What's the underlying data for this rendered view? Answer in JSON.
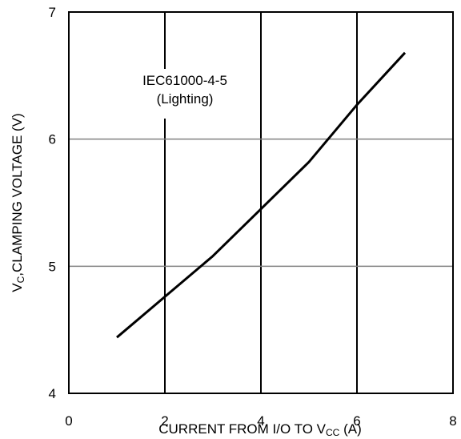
{
  "chart_data": {
    "type": "line",
    "title": "",
    "xlabel": {
      "main": "CURRENT FROM I/O TO V",
      "sub": "CC",
      "tail": " (A)"
    },
    "ylabel": {
      "pre": "V",
      "sub": "C",
      "main": ",CLAMPING VOLTAGE (V)"
    },
    "xlim": [
      0,
      8
    ],
    "ylim": [
      4,
      7
    ],
    "x_ticks": [
      "0",
      "2",
      "4",
      "6",
      "8"
    ],
    "y_ticks": [
      "4",
      "5",
      "6",
      "7"
    ],
    "grid": true,
    "annotation": [
      "IEC61000-4-5",
      "(Lighting)"
    ],
    "series": [
      {
        "x": [
          1.0,
          2.0,
          3.0,
          4.0,
          5.0,
          6.0,
          7.0
        ],
        "y": [
          4.44,
          4.76,
          5.08,
          5.45,
          5.82,
          6.27,
          6.68
        ]
      }
    ],
    "colors": {
      "line": "#000000",
      "grid_major": "#000000",
      "grid_minor": "#808080"
    }
  }
}
